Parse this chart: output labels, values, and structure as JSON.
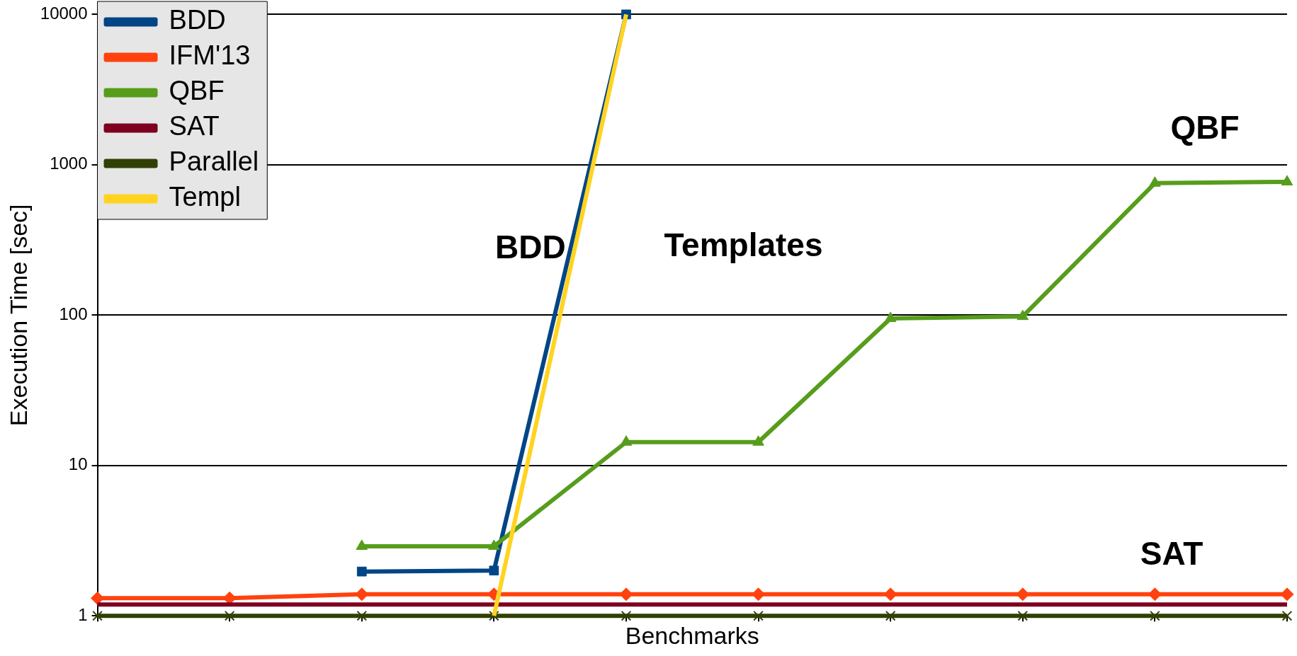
{
  "chart_data": {
    "type": "line",
    "xlabel": "Benchmarks",
    "ylabel": "Execution Time [sec]",
    "categories": [
      null,
      null,
      null,
      null,
      null,
      null,
      null,
      null,
      null,
      null
    ],
    "ylim": [
      1,
      10000
    ],
    "yticks": [
      1,
      10,
      100,
      1000,
      10000
    ],
    "log": "y",
    "grid": "y",
    "legend": "top left",
    "tick_labels": "y",
    "series": [
      {
        "name": "BDD",
        "color": "#004586",
        "marker": "square",
        "values": [
          null,
          null,
          1.97,
          2,
          10000,
          null,
          null,
          null,
          null,
          null
        ]
      },
      {
        "name": "IFM'13",
        "color": "#ff420e",
        "marker": "diamond",
        "values": [
          1.31,
          1.31,
          1.39,
          1.39,
          1.39,
          1.39,
          1.39,
          1.39,
          1.39,
          1.39
        ]
      },
      {
        "name": "QBF",
        "color": "#579d1c",
        "marker": "triangle",
        "values": [
          null,
          null,
          2.9,
          2.9,
          14.3,
          14.3,
          95,
          98,
          755,
          770
        ]
      },
      {
        "name": "SAT",
        "color": "#7e0021",
        "marker": "none",
        "values": [
          1.19,
          1.19,
          1.19,
          1.19,
          1.19,
          1.19,
          1.19,
          1.19,
          1.19,
          1.19
        ]
      },
      {
        "name": "Parallel",
        "color": "#314004",
        "marker": "cross",
        "values": [
          1,
          1,
          1,
          1,
          1,
          1,
          1,
          1,
          1,
          1
        ]
      },
      {
        "name": "Templ",
        "color": "#ffd320",
        "marker": "none",
        "values": [
          null,
          null,
          null,
          1,
          10000,
          null,
          null,
          null,
          null,
          null
        ]
      }
    ],
    "annotations": [
      "BDD",
      "Templates",
      "QBF",
      "SAT"
    ]
  }
}
